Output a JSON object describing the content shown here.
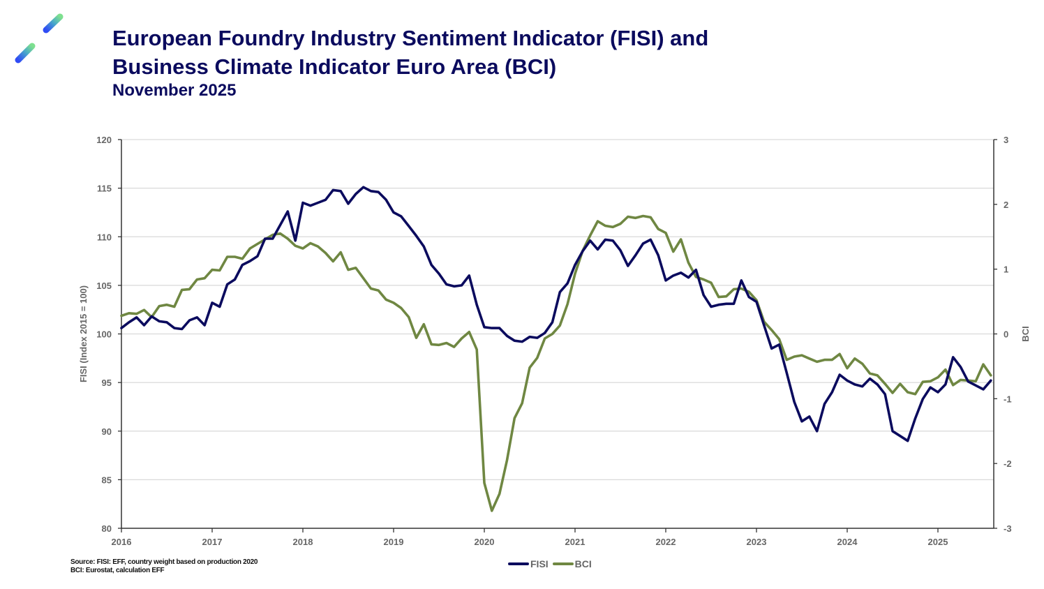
{
  "header": {
    "title_line1": "European Foundry Industry Sentiment Indicator (FISI) and",
    "title_line2": "Business Climate Indicator Euro Area (BCI)",
    "subtitle": "November 2025"
  },
  "logo": {
    "icon": "eff-logo-icon",
    "colors": [
      "#2f4bf5",
      "#49a9c9",
      "#7ee08f"
    ]
  },
  "footer": {
    "source_line1": "Source: FISI: EFF, country weight based on production 2020",
    "source_line2": "BCI: Eurostat, calculation EFF"
  },
  "chart_data": {
    "type": "line",
    "title": "European Foundry Industry Sentiment Indicator (FISI) and Business Climate Indicator Euro Area (BCI)",
    "subtitle": "November 2025",
    "xlabel": "",
    "ylabel": "FISI (Index 2015 = 100)",
    "y2label": "BCI",
    "x_start": "2016-01",
    "x_frequency": "monthly",
    "x_ticks": [
      "2016",
      "2017",
      "2018",
      "2019",
      "2020",
      "2021",
      "2022",
      "2023",
      "2024",
      "2025"
    ],
    "ylim": [
      80,
      120
    ],
    "y_ticks": [
      "80",
      "85",
      "90",
      "95",
      "100",
      "105",
      "110",
      "115",
      "120"
    ],
    "y2lim": [
      -3,
      3
    ],
    "y2_ticks": [
      "-3",
      "-2",
      "-1",
      "0",
      "1",
      "2",
      "3"
    ],
    "grid": true,
    "legend": "bottom-center",
    "series": [
      {
        "name": "FISI",
        "axis": "left",
        "color": "#0b0b5e",
        "values": [
          100.6,
          101.2,
          101.7,
          100.9,
          101.8,
          101.3,
          101.2,
          100.6,
          100.5,
          101.4,
          101.7,
          100.9,
          103.2,
          102.8,
          105.1,
          105.6,
          107.1,
          107.5,
          108.0,
          109.8,
          109.8,
          111.2,
          112.6,
          109.6,
          113.5,
          113.2,
          113.5,
          113.8,
          114.8,
          114.7,
          113.4,
          114.4,
          115.1,
          114.7,
          114.6,
          113.8,
          112.5,
          112.1,
          111.1,
          110.1,
          109.0,
          107.1,
          106.2,
          105.1,
          104.9,
          105.0,
          106.0,
          103.0,
          100.7,
          100.6,
          100.6,
          99.8,
          99.3,
          99.2,
          99.7,
          99.6,
          100.1,
          101.2,
          104.3,
          105.2,
          107.1,
          108.5,
          109.6,
          108.7,
          109.7,
          109.6,
          108.6,
          107.0,
          108.1,
          109.3,
          109.7,
          108.1,
          105.5,
          106.0,
          106.3,
          105.8,
          106.6,
          104.0,
          102.8,
          103.0,
          103.1,
          103.1,
          105.5,
          103.8,
          103.3,
          100.9,
          98.5,
          98.9,
          96.0,
          93.0,
          91.0,
          91.5,
          90.0,
          92.8,
          94.0,
          95.8,
          95.2,
          94.8,
          94.6,
          95.4,
          94.8,
          93.8,
          90.0,
          89.5,
          89.0,
          91.3,
          93.3,
          94.5,
          94.0,
          94.8,
          97.6,
          96.6,
          95.1,
          94.7,
          94.3,
          95.2
        ]
      },
      {
        "name": "BCI",
        "axis": "right",
        "color": "#6f8742",
        "values": [
          0.28,
          0.32,
          0.31,
          0.37,
          0.26,
          0.43,
          0.45,
          0.42,
          0.68,
          0.69,
          0.84,
          0.86,
          0.99,
          0.98,
          1.19,
          1.19,
          1.16,
          1.32,
          1.39,
          1.46,
          1.53,
          1.55,
          1.47,
          1.36,
          1.32,
          1.4,
          1.35,
          1.25,
          1.12,
          1.26,
          0.99,
          1.02,
          0.86,
          0.7,
          0.67,
          0.53,
          0.48,
          0.4,
          0.26,
          -0.06,
          0.15,
          -0.16,
          -0.17,
          -0.14,
          -0.2,
          -0.07,
          0.03,
          -0.24,
          -2.3,
          -2.73,
          -2.47,
          -1.95,
          -1.3,
          -1.07,
          -0.52,
          -0.37,
          -0.07,
          0.0,
          0.13,
          0.46,
          0.93,
          1.28,
          1.52,
          1.74,
          1.67,
          1.65,
          1.7,
          1.81,
          1.79,
          1.82,
          1.8,
          1.62,
          1.56,
          1.27,
          1.46,
          1.1,
          0.88,
          0.84,
          0.79,
          0.57,
          0.58,
          0.69,
          0.7,
          0.65,
          0.52,
          0.19,
          0.06,
          -0.08,
          -0.4,
          -0.35,
          -0.33,
          -0.38,
          -0.43,
          -0.4,
          -0.4,
          -0.31,
          -0.53,
          -0.38,
          -0.46,
          -0.61,
          -0.64,
          -0.77,
          -0.91,
          -0.77,
          -0.9,
          -0.93,
          -0.74,
          -0.73,
          -0.67,
          -0.55,
          -0.79,
          -0.71,
          -0.72,
          -0.73,
          -0.47,
          -0.64
        ]
      }
    ]
  }
}
